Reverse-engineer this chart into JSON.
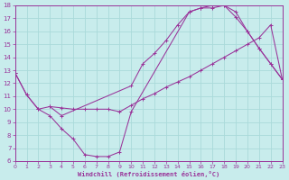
{
  "xlabel": "Windchill (Refroidissement éolien,°C)",
  "xlim": [
    0,
    23
  ],
  "ylim": [
    6,
    18
  ],
  "xticks": [
    0,
    1,
    2,
    3,
    4,
    5,
    6,
    7,
    8,
    9,
    10,
    11,
    12,
    13,
    14,
    15,
    16,
    17,
    18,
    19,
    20,
    21,
    22,
    23
  ],
  "yticks": [
    6,
    7,
    8,
    9,
    10,
    11,
    12,
    13,
    14,
    15,
    16,
    17,
    18
  ],
  "bg_color": "#c8ecec",
  "grid_color": "#aadada",
  "line_color": "#993399",
  "curve1_x": [
    0,
    1,
    2,
    3,
    4,
    5,
    6,
    7,
    8,
    9,
    10,
    15,
    16,
    17,
    18,
    19,
    20,
    21,
    22,
    23
  ],
  "curve1_y": [
    12.8,
    11.1,
    10.0,
    9.5,
    8.5,
    7.7,
    6.5,
    6.35,
    6.35,
    6.7,
    9.8,
    17.5,
    17.8,
    17.8,
    18.0,
    17.1,
    16.0,
    14.7,
    13.5,
    12.3
  ],
  "curve2_x": [
    0,
    1,
    2,
    3,
    4,
    5,
    6,
    7,
    8,
    9,
    10,
    11,
    12,
    13,
    14,
    15,
    16,
    17,
    18,
    19,
    20,
    21,
    22,
    23
  ],
  "curve2_y": [
    12.8,
    11.1,
    10.0,
    10.2,
    10.1,
    10.0,
    10.0,
    10.0,
    10.0,
    9.8,
    10.3,
    10.8,
    11.2,
    11.7,
    12.1,
    12.5,
    13.0,
    13.5,
    14.0,
    14.5,
    15.0,
    15.5,
    16.5,
    12.3
  ],
  "curve3_x": [
    3,
    4,
    10,
    11,
    12,
    13,
    14,
    15,
    16,
    17,
    18,
    19,
    20,
    21,
    22,
    23
  ],
  "curve3_y": [
    10.2,
    9.5,
    11.8,
    13.5,
    14.3,
    15.3,
    16.5,
    17.5,
    17.8,
    18.0,
    18.0,
    17.5,
    16.0,
    14.7,
    13.5,
    12.3
  ]
}
